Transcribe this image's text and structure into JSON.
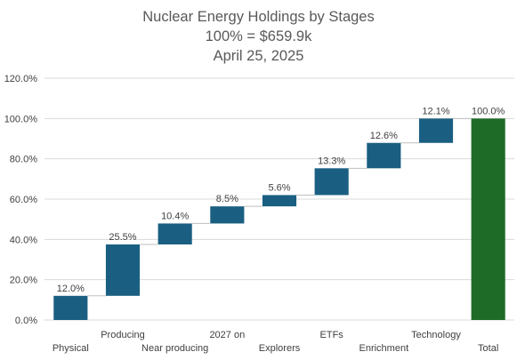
{
  "title_lines": [
    "Nuclear Energy Holdings by Stages",
    "100% = $659.9k",
    "April 25, 2025"
  ],
  "chart_data": {
    "type": "bar",
    "subtype": "waterfall",
    "title": "Nuclear Energy Holdings by Stages\n100% = $659.9k\nApril 25, 2025",
    "categories": [
      "Physical",
      "Producing",
      "Near producing",
      "2027 on",
      "Explorers",
      "ETFs",
      "Enrichment",
      "Technology",
      "Total"
    ],
    "values": [
      12.0,
      25.5,
      10.4,
      8.5,
      5.6,
      13.3,
      12.6,
      12.1,
      100.0
    ],
    "data_labels": [
      "12.0%",
      "25.5%",
      "10.4%",
      "8.5%",
      "5.6%",
      "13.3%",
      "12.6%",
      "12.1%",
      "100.0%"
    ],
    "ylim": [
      0,
      120
    ],
    "y_ticks": [
      0,
      20,
      40,
      60,
      80,
      100,
      120
    ],
    "y_tick_labels": [
      "0.0%",
      "20.0%",
      "40.0%",
      "60.0%",
      "80.0%",
      "100.0%",
      "120.0%"
    ],
    "xlabel": "",
    "ylabel": "",
    "grid": true,
    "legend": "none",
    "colors": {
      "increase": "#1a5f82",
      "total": "#1e6b28",
      "grid": "#d9d9d9",
      "connector": "#bfbfbf",
      "text": "#404040",
      "title": "#595959"
    }
  }
}
